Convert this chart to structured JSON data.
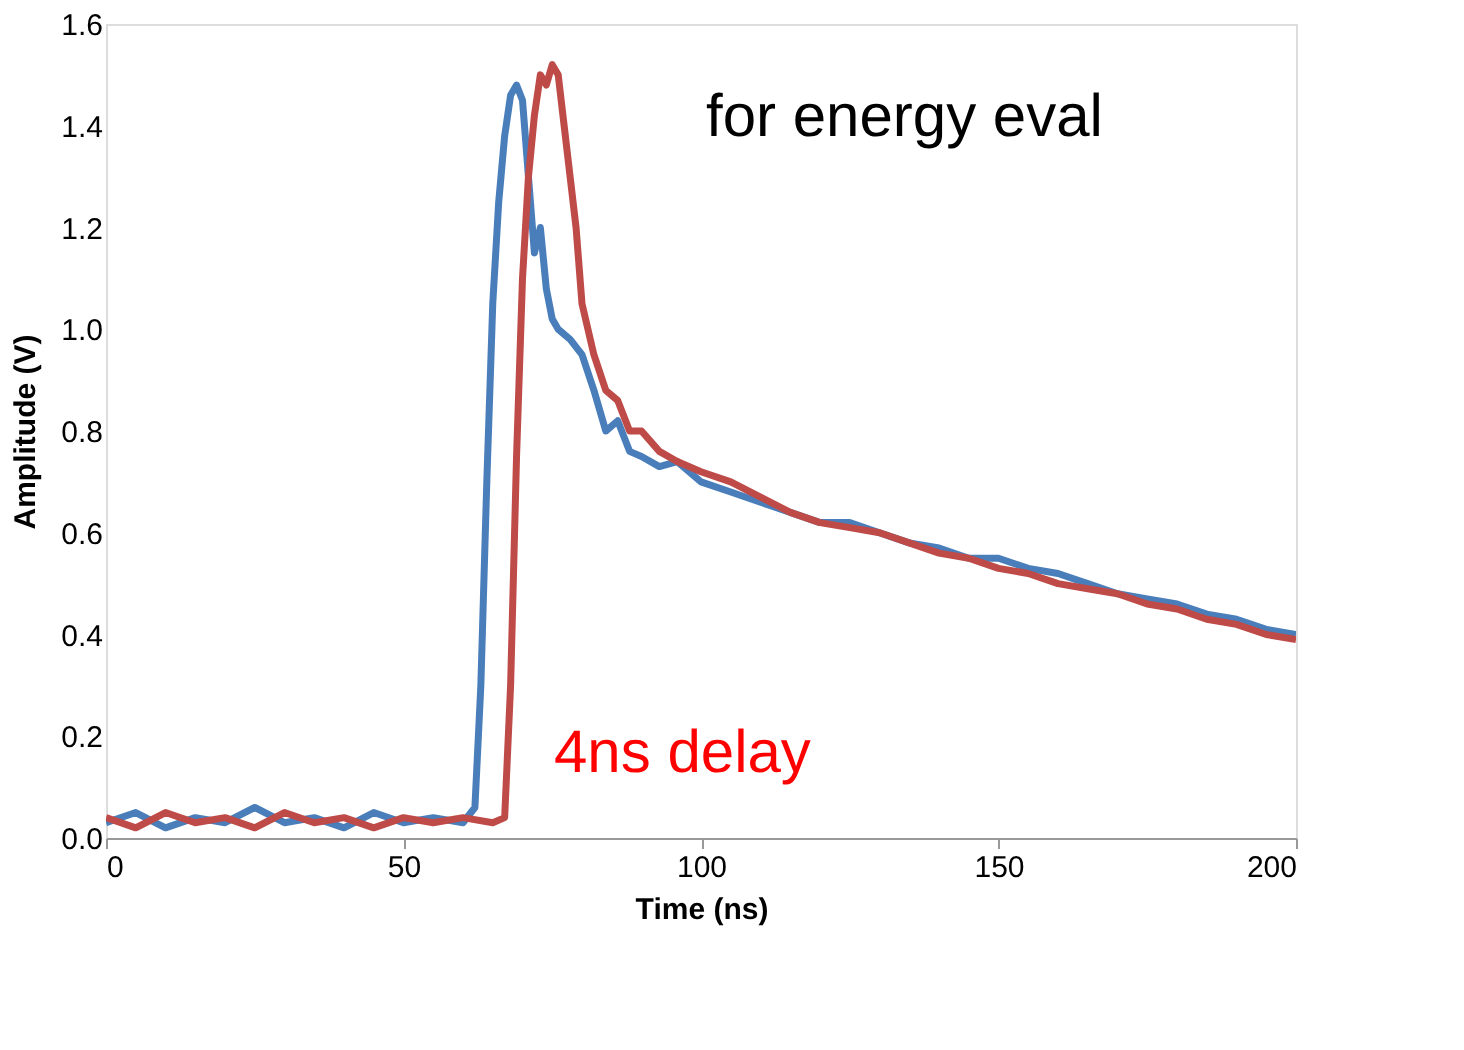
{
  "chart_data": {
    "type": "line",
    "xlabel": "Time (ns)",
    "ylabel": "Amplitude (V)",
    "xlim": [
      0,
      200
    ],
    "xticks": [
      0,
      50,
      100,
      150,
      200
    ],
    "ylim": [
      0,
      1.6
    ],
    "yticks": [
      {
        "value": 0,
        "label": "0.0"
      },
      {
        "value": 0.2,
        "label": "0.2"
      },
      {
        "value": 0.4,
        "label": "0.4"
      },
      {
        "value": 0.6,
        "label": "0.6"
      },
      {
        "value": 0.8,
        "label": "0.8"
      },
      {
        "value": 1.0,
        "label": "1.0"
      },
      {
        "value": 1.2,
        "label": "1.2"
      },
      {
        "value": 1.4,
        "label": "1.4"
      },
      {
        "value": 1.6,
        "label": "1.6"
      }
    ],
    "grid": false,
    "legend": false,
    "marker": "none",
    "line_style": "solid",
    "annotations": [
      "for energy eval",
      "4ns delay"
    ],
    "series": [
      {
        "color": "#4a7ebb",
        "x": [
          0,
          5,
          10,
          15,
          20,
          25,
          30,
          35,
          40,
          45,
          50,
          55,
          60,
          62,
          63,
          64,
          65,
          66,
          67,
          68,
          69,
          70,
          71,
          72,
          73,
          74,
          75,
          76,
          78,
          80,
          82,
          84,
          86,
          88,
          90,
          93,
          96,
          100,
          105,
          110,
          115,
          120,
          125,
          130,
          135,
          140,
          145,
          150,
          155,
          160,
          165,
          170,
          175,
          180,
          185,
          190,
          195,
          200
        ],
        "values": [
          0.03,
          0.05,
          0.02,
          0.04,
          0.03,
          0.06,
          0.03,
          0.04,
          0.02,
          0.05,
          0.03,
          0.04,
          0.03,
          0.06,
          0.3,
          0.7,
          1.05,
          1.25,
          1.38,
          1.46,
          1.48,
          1.45,
          1.3,
          1.15,
          1.2,
          1.08,
          1.02,
          1.0,
          0.98,
          0.95,
          0.88,
          0.8,
          0.82,
          0.76,
          0.75,
          0.73,
          0.74,
          0.7,
          0.68,
          0.66,
          0.64,
          0.62,
          0.62,
          0.6,
          0.58,
          0.57,
          0.55,
          0.55,
          0.53,
          0.52,
          0.5,
          0.48,
          0.47,
          0.46,
          0.44,
          0.43,
          0.41,
          0.4
        ]
      },
      {
        "color": "#be4b48",
        "x": [
          0,
          5,
          10,
          15,
          20,
          25,
          30,
          35,
          40,
          45,
          50,
          55,
          60,
          65,
          67,
          68,
          69,
          70,
          71,
          72,
          73,
          74,
          75,
          76,
          77,
          78,
          79,
          80,
          82,
          84,
          86,
          88,
          90,
          93,
          96,
          100,
          105,
          110,
          115,
          120,
          125,
          130,
          135,
          140,
          145,
          150,
          155,
          160,
          165,
          170,
          175,
          180,
          185,
          190,
          195,
          200
        ],
        "values": [
          0.04,
          0.02,
          0.05,
          0.03,
          0.04,
          0.02,
          0.05,
          0.03,
          0.04,
          0.02,
          0.04,
          0.03,
          0.04,
          0.03,
          0.04,
          0.3,
          0.75,
          1.1,
          1.3,
          1.42,
          1.5,
          1.48,
          1.52,
          1.5,
          1.4,
          1.3,
          1.2,
          1.05,
          0.95,
          0.88,
          0.86,
          0.8,
          0.8,
          0.76,
          0.74,
          0.72,
          0.7,
          0.67,
          0.64,
          0.62,
          0.61,
          0.6,
          0.58,
          0.56,
          0.55,
          0.53,
          0.52,
          0.5,
          0.49,
          0.48,
          0.46,
          0.45,
          0.43,
          0.42,
          0.4,
          0.39
        ]
      }
    ]
  }
}
